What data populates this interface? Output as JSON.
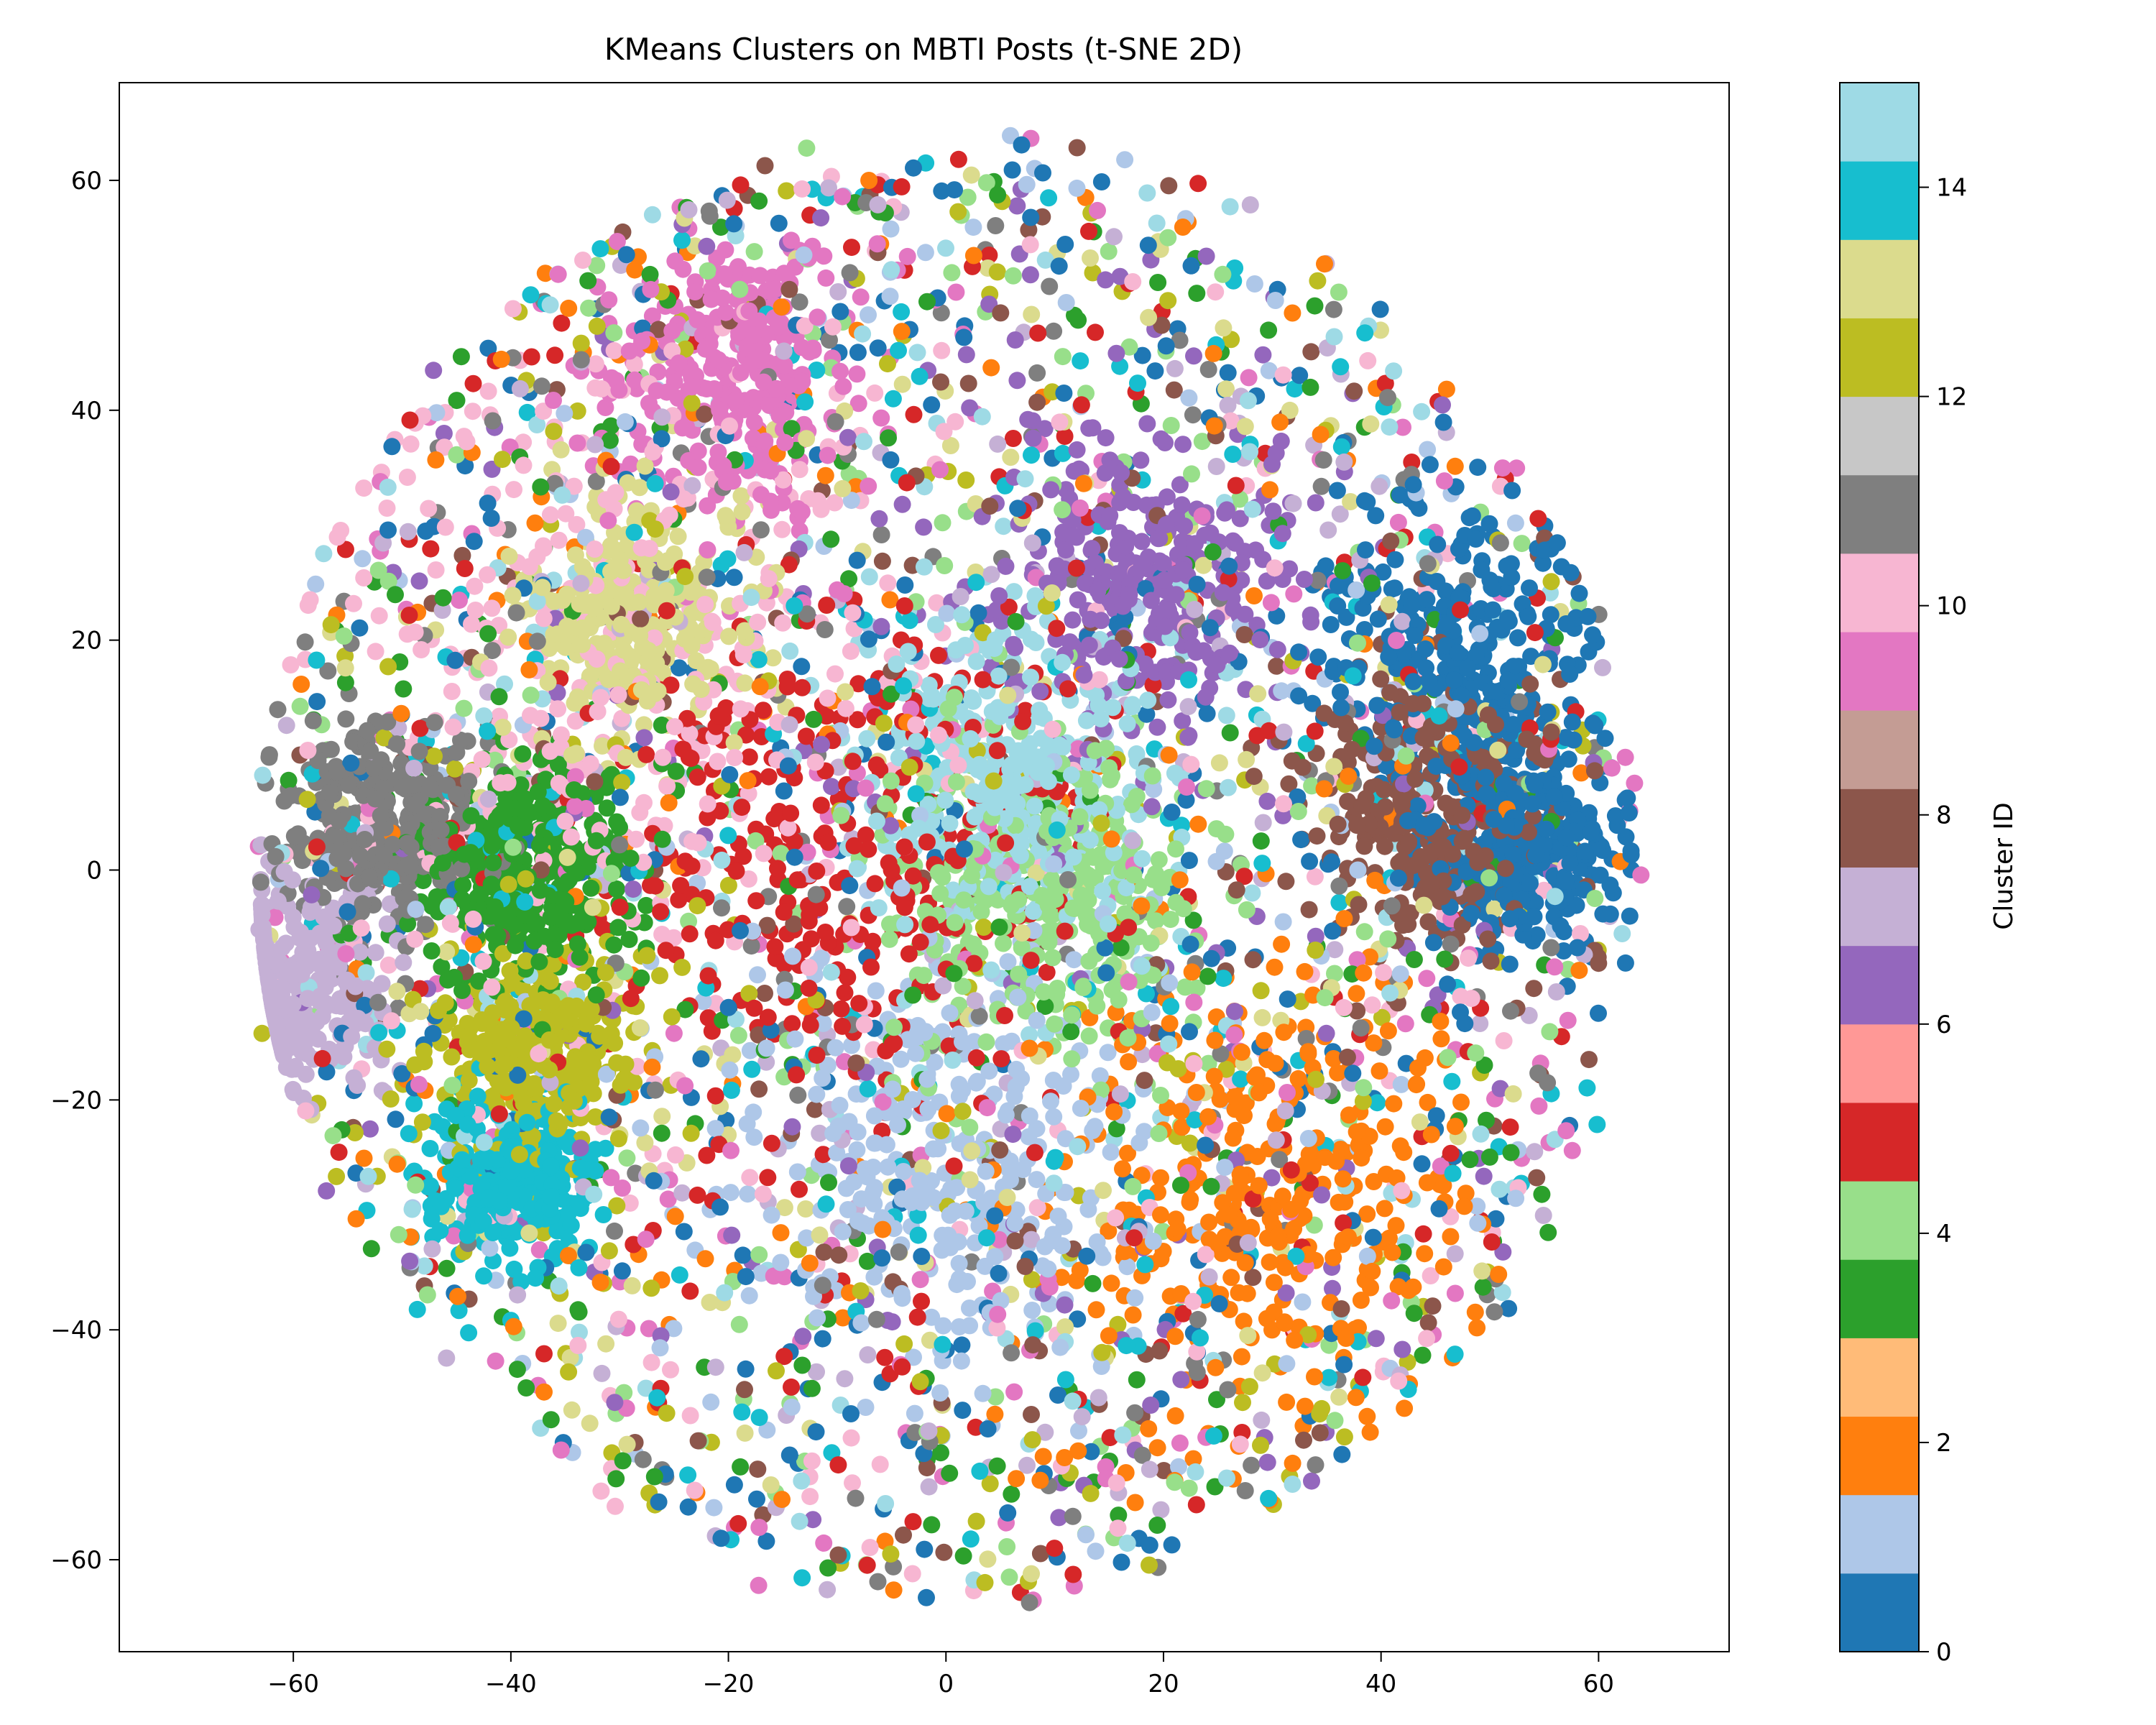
{
  "chart_data": {
    "type": "scatter",
    "title": "KMeans Clusters on MBTI Posts (t-SNE 2D)",
    "xlabel": "",
    "ylabel": "",
    "xlim": [
      -76,
      72
    ],
    "ylim": [
      -68,
      68.5
    ],
    "x_ticks": [
      -60,
      -40,
      -20,
      0,
      20,
      40,
      60
    ],
    "y_ticks": [
      -60,
      -40,
      -20,
      0,
      20,
      40,
      60
    ],
    "grid": false,
    "colorbar": {
      "label": "Cluster ID",
      "range": [
        0,
        15
      ],
      "ticks": [
        0,
        2,
        4,
        6,
        8,
        10,
        12,
        14
      ],
      "colormap": "tab20",
      "colors": [
        "#1f77b4",
        "#aec7e8",
        "#ff7f0e",
        "#ffbb78",
        "#2ca02c",
        "#98df8a",
        "#d62728",
        "#ff9896",
        "#9467bd",
        "#c5b0d5",
        "#8c564b",
        "#c49c94",
        "#e377c2",
        "#f7b6d2",
        "#7f7f7f",
        "#c7c7c7",
        "#bcbd22",
        "#dbdb8d",
        "#17becf",
        "#9edae5"
      ]
    },
    "point_cloud": {
      "center": [
        0,
        0
      ],
      "radius": 63
    },
    "clusters": [
      {
        "id": 0,
        "center": [
          47,
          18
        ],
        "spread": 9
      },
      {
        "id": 0,
        "center": [
          53,
          2
        ],
        "spread": 6
      },
      {
        "id": 1,
        "center": [
          0,
          -24
        ],
        "spread": 12
      },
      {
        "id": 2,
        "center": [
          30,
          -28
        ],
        "spread": 13
      },
      {
        "id": 3,
        "center": [
          -38,
          0
        ],
        "spread": 7
      },
      {
        "id": 4,
        "center": [
          10,
          -2
        ],
        "spread": 10
      },
      {
        "id": 5,
        "center": [
          -10,
          0
        ],
        "spread": 14
      },
      {
        "id": 6,
        "center": [
          18,
          25
        ],
        "spread": 9
      },
      {
        "id": 7,
        "center": [
          -60,
          -10
        ],
        "spread": 6
      },
      {
        "id": 8,
        "center": [
          45,
          5
        ],
        "spread": 8
      },
      {
        "id": 9,
        "center": [
          -20,
          44
        ],
        "spread": 8
      },
      {
        "id": 10,
        "center": [
          -30,
          18
        ],
        "spread": 18
      },
      {
        "id": 11,
        "center": [
          -52,
          4
        ],
        "spread": 6
      },
      {
        "id": 12,
        "center": [
          -38,
          -16
        ],
        "spread": 6
      },
      {
        "id": 13,
        "center": [
          -29,
          22
        ],
        "spread": 7
      },
      {
        "id": 14,
        "center": [
          -40,
          -27
        ],
        "spread": 5
      },
      {
        "id": 15,
        "center": [
          6,
          8
        ],
        "spread": 9
      }
    ]
  }
}
